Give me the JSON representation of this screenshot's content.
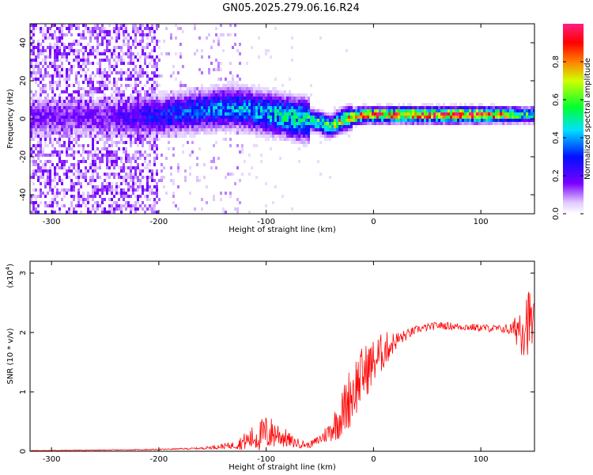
{
  "figure": {
    "title": "GN05.2025.279.06.16.R24"
  },
  "chart_data": [
    {
      "type": "heatmap",
      "title": "",
      "xlabel": "Height of straight line (km)",
      "ylabel": "Frequency (Hz)",
      "xlim": [
        -320,
        150
      ],
      "ylim": [
        -50,
        50
      ],
      "xticks": [
        -300,
        -200,
        -100,
        0,
        100
      ],
      "yticks": [
        -40,
        -20,
        0,
        20,
        40
      ],
      "colorbar": {
        "label": "Normalized spectral amplitude",
        "range": [
          0,
          1
        ],
        "ticks": [
          "0.0",
          "0.2",
          "0.4",
          "0.6",
          "0.8"
        ],
        "tick_values": [
          0.0,
          0.2,
          0.4,
          0.6,
          0.8
        ]
      },
      "ridge_center_hz": {
        "x": [
          -210,
          -180,
          -150,
          -130,
          -110,
          -90,
          -70,
          -55,
          -45,
          -40,
          -30,
          -20,
          -10,
          0,
          50,
          100,
          130,
          150
        ],
        "y": [
          1,
          3,
          5,
          6,
          4,
          2,
          0,
          -1,
          -3,
          -4,
          -1,
          1,
          2,
          2,
          2,
          2,
          2,
          2
        ]
      },
      "peak_amplitude": {
        "x": [
          -320,
          -250,
          -210,
          -150,
          -100,
          -60,
          -45,
          -20,
          0,
          50,
          100,
          140,
          150
        ],
        "y": [
          0.15,
          0.15,
          0.25,
          0.35,
          0.4,
          0.5,
          0.55,
          0.75,
          0.85,
          0.85,
          0.9,
          0.5,
          0.5
        ]
      }
    },
    {
      "type": "line",
      "title": "",
      "xlabel": "Height of straight line (km)",
      "ylabel": "SNR (10 * v/v)",
      "y_multiplier": "(x10",
      "y_multiplier_exp": "4",
      "y_multiplier_close": ")",
      "xlim": [
        -320,
        150
      ],
      "ylim": [
        0,
        3.2
      ],
      "xticks": [
        -300,
        -200,
        -100,
        0,
        100
      ],
      "yticks": [
        0,
        1,
        2,
        3
      ],
      "series": [
        {
          "color": "#ff0000",
          "x": [
            -320,
            -250,
            -200,
            -160,
            -130,
            -115,
            -100,
            -90,
            -75,
            -60,
            -50,
            -40,
            -30,
            -20,
            -10,
            0,
            10,
            20,
            30,
            40,
            60,
            80,
            100,
            120,
            130,
            135,
            140,
            145,
            150
          ],
          "y": [
            0.01,
            0.02,
            0.03,
            0.05,
            0.1,
            0.2,
            0.3,
            0.3,
            0.15,
            0.1,
            0.2,
            0.35,
            0.6,
            1.0,
            1.3,
            1.5,
            1.7,
            1.85,
            1.95,
            2.05,
            2.12,
            2.1,
            2.08,
            2.06,
            2.05,
            2.1,
            2.2,
            2.2,
            2.1
          ],
          "noise": [
            0.003,
            0.004,
            0.006,
            0.01,
            0.04,
            0.12,
            0.2,
            0.15,
            0.06,
            0.03,
            0.06,
            0.12,
            0.25,
            0.35,
            0.3,
            0.25,
            0.2,
            0.1,
            0.06,
            0.04,
            0.04,
            0.04,
            0.04,
            0.04,
            0.08,
            0.25,
            0.4,
            0.35,
            0.3
          ]
        }
      ]
    }
  ]
}
